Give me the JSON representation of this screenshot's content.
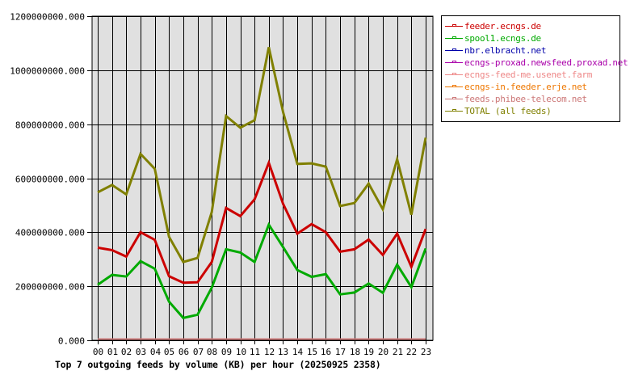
{
  "chart_data": {
    "type": "line",
    "title": "Top 7 outgoing feeds by volume (KB) per hour (20250925 2358)",
    "xlabel": "",
    "ylabel": "",
    "ylim": [
      0,
      1200000000
    ],
    "yticks": [
      "0.000",
      "200000000.000",
      "400000000.000",
      "600000000.000",
      "800000000.000",
      "1000000000.000",
      "1200000000.000"
    ],
    "ytick_values": [
      0,
      200000000,
      400000000,
      600000000,
      800000000,
      1000000000,
      1200000000
    ],
    "categories": [
      "00",
      "01",
      "02",
      "03",
      "04",
      "05",
      "06",
      "07",
      "08",
      "09",
      "10",
      "11",
      "12",
      "13",
      "14",
      "15",
      "16",
      "17",
      "18",
      "19",
      "20",
      "21",
      "22",
      "23"
    ],
    "grid": true,
    "legend_position": "right",
    "plot_background": "#e0e0e0",
    "series": [
      {
        "name": "feeder.ecngs.de",
        "color": "#cc0000",
        "values": [
          343000000,
          334000000,
          310000000,
          400000000,
          372000000,
          237000000,
          213000000,
          215000000,
          290000000,
          490000000,
          460000000,
          522000000,
          657000000,
          505000000,
          395000000,
          430000000,
          400000000,
          328000000,
          337000000,
          373000000,
          316000000,
          395000000,
          272000000,
          412000000
        ]
      },
      {
        "name": "spool1.ecngs.de",
        "color": "#00aa00",
        "values": [
          206000000,
          242000000,
          236000000,
          293000000,
          265000000,
          143000000,
          83000000,
          95000000,
          195000000,
          337000000,
          325000000,
          290000000,
          428000000,
          345000000,
          260000000,
          235000000,
          245000000,
          170000000,
          177000000,
          210000000,
          176000000,
          280000000,
          197000000,
          340000000
        ]
      },
      {
        "name": "nbr.elbracht.net",
        "color": "#0000aa",
        "values": [
          0,
          0,
          0,
          0,
          0,
          0,
          0,
          0,
          0,
          0,
          0,
          0,
          0,
          0,
          0,
          0,
          0,
          0,
          0,
          0,
          0,
          0,
          0,
          0
        ]
      },
      {
        "name": "ecngs-proxad.newsfeed.proxad.net",
        "color": "#aa00aa",
        "values": [
          0,
          0,
          0,
          0,
          0,
          0,
          0,
          0,
          0,
          0,
          0,
          0,
          0,
          0,
          0,
          0,
          0,
          0,
          0,
          0,
          0,
          0,
          0,
          0
        ]
      },
      {
        "name": "ecngs-feed-me.usenet.farm",
        "color": "#ee8888",
        "values": [
          0,
          0,
          0,
          0,
          0,
          0,
          0,
          0,
          0,
          0,
          0,
          0,
          0,
          0,
          0,
          0,
          0,
          0,
          0,
          0,
          0,
          0,
          0,
          0
        ]
      },
      {
        "name": "ecngs-in.feeder.erje.net",
        "color": "#ee7700",
        "values": [
          0,
          0,
          0,
          0,
          0,
          0,
          0,
          0,
          0,
          0,
          0,
          0,
          0,
          0,
          0,
          0,
          0,
          0,
          0,
          0,
          0,
          0,
          0,
          0
        ]
      },
      {
        "name": "feeds.phibee-telecom.net",
        "color": "#cc7777",
        "values": [
          0,
          0,
          0,
          0,
          0,
          0,
          0,
          0,
          0,
          0,
          0,
          0,
          0,
          0,
          0,
          0,
          0,
          0,
          0,
          0,
          0,
          0,
          0,
          0
        ]
      },
      {
        "name": "TOTAL (all feeds)",
        "color": "#808000",
        "values": [
          548000000,
          575000000,
          540000000,
          690000000,
          635000000,
          383000000,
          290000000,
          305000000,
          475000000,
          830000000,
          787000000,
          815000000,
          1085000000,
          845000000,
          653000000,
          655000000,
          643000000,
          497000000,
          508000000,
          580000000,
          485000000,
          670000000,
          465000000,
          750000000
        ]
      }
    ]
  },
  "legend": {
    "items": [
      {
        "label": "feeder.ecngs.de",
        "color": "#cc0000"
      },
      {
        "label": "spool1.ecngs.de",
        "color": "#00aa00"
      },
      {
        "label": "nbr.elbracht.net",
        "color": "#0000aa"
      },
      {
        "label": "ecngs-proxad.newsfeed.proxad.net",
        "color": "#aa00aa"
      },
      {
        "label": "ecngs-feed-me.usenet.farm",
        "color": "#ee8888"
      },
      {
        "label": "ecngs-in.feeder.erje.net",
        "color": "#ee7700"
      },
      {
        "label": "feeds.phibee-telecom.net",
        "color": "#cc7777"
      },
      {
        "label": "TOTAL (all feeds)",
        "color": "#808000"
      }
    ]
  },
  "caption": "Top 7 outgoing feeds by volume (KB) per hour (20250925 2358)"
}
